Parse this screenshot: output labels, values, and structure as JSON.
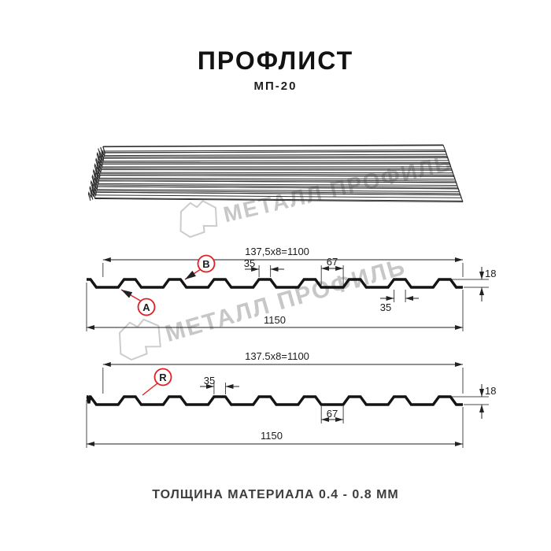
{
  "header": {
    "title": "ПРОФЛИСТ",
    "subtitle": "МП-20"
  },
  "footer": {
    "text": "ТОЛЩИНА МАТЕРИАЛА 0.4 - 0.8 ММ"
  },
  "watermark": {
    "text": "МЕТАЛЛ ПРОФИЛЬ"
  },
  "colors": {
    "accent_red": "#e31e24",
    "line": "#1b1b1b",
    "watermark_gray": "#c7c7c7"
  },
  "sections": {
    "top": {
      "dim_module": "137,5x8=1100",
      "dim_rib_top": "35",
      "dim_gap": "67",
      "dim_height": "18",
      "dim_rib_bottom": "35",
      "dim_width": "1150",
      "label_a": "A",
      "label_b": "B"
    },
    "bottom": {
      "dim_module": "137.5x8=1100",
      "dim_rib_top": "35",
      "dim_gap": "67",
      "dim_height": "18",
      "dim_width": "1150",
      "label_r": "R"
    }
  }
}
